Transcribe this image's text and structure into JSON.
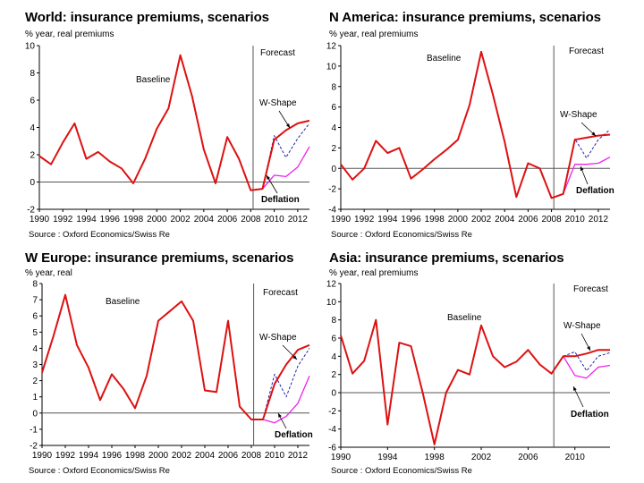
{
  "colors": {
    "baseline": "#dd1111",
    "wshape": "#2222aa",
    "deflation": "#ee22ee",
    "axis": "#555555"
  },
  "chart_data": [
    {
      "type": "line",
      "title": "World: insurance premiums, scenarios",
      "ylabel": "% year, real premiums",
      "source": "Source : Oxford Economics/Swiss Re",
      "xlim": [
        1990,
        2013
      ],
      "ylim": [
        -2,
        10
      ],
      "yticks": [
        -2,
        0,
        2,
        4,
        6,
        8,
        10
      ],
      "xticks": [
        1990,
        1992,
        1994,
        1996,
        1998,
        2000,
        2002,
        2004,
        2006,
        2008,
        2010,
        2012
      ],
      "xtick_labels": [
        "1990",
        "1992",
        "1994",
        "1996",
        "1998",
        "2000",
        "2002",
        "2004",
        "2006",
        "2008",
        "2010",
        "2012"
      ],
      "forecast_year": 2008.2,
      "labels": {
        "forecast": "Forecast",
        "baseline": "Baseline",
        "wshape": "W-Shape",
        "deflation": "Deflation"
      },
      "series": [
        {
          "name": "Baseline",
          "x": [
            1990,
            1991,
            1992,
            1993,
            1994,
            1995,
            1996,
            1997,
            1998,
            1999,
            2000,
            2001,
            2002,
            2003,
            2004,
            2005,
            2006,
            2007,
            2008,
            2009,
            2010,
            2011,
            2012,
            2013
          ],
          "values": [
            1.9,
            1.3,
            2.9,
            4.3,
            1.7,
            2.2,
            1.5,
            1.0,
            -0.1,
            1.7,
            3.9,
            5.4,
            9.3,
            6.3,
            2.4,
            -0.1,
            3.3,
            1.7,
            -0.6,
            -0.5,
            3.1,
            3.8,
            4.3,
            4.5
          ]
        },
        {
          "name": "W-Shape",
          "x": [
            2009,
            2010,
            2011,
            2012,
            2013
          ],
          "values": [
            -0.5,
            3.4,
            1.8,
            3.2,
            4.3
          ]
        },
        {
          "name": "Deflation",
          "x": [
            2009,
            2010,
            2011,
            2012,
            2013
          ],
          "values": [
            -0.5,
            0.5,
            0.4,
            1.1,
            2.6
          ]
        }
      ]
    },
    {
      "type": "line",
      "title": "N America: insurance premiums, scenarios",
      "ylabel": "% year, real premiums",
      "source": "Source : Oxford Economics/Swiss Re",
      "xlim": [
        1990,
        2013
      ],
      "ylim": [
        -4,
        12
      ],
      "yticks": [
        -4,
        -2,
        0,
        2,
        4,
        6,
        8,
        10,
        12
      ],
      "xticks": [
        1990,
        1992,
        1994,
        1996,
        1998,
        2000,
        2002,
        2004,
        2006,
        2008,
        2010,
        2012
      ],
      "xtick_labels": [
        "1990",
        "1992",
        "1994",
        "1996",
        "1998",
        "2000",
        "2002",
        "2004",
        "2006",
        "2008",
        "2010",
        "2012"
      ],
      "forecast_year": 2008.2,
      "labels": {
        "forecast": "Forecast",
        "baseline": "Baseline",
        "wshape": "W-Shape",
        "deflation": "Deflation"
      },
      "series": [
        {
          "name": "Baseline",
          "x": [
            1990,
            1991,
            1992,
            1993,
            1994,
            1995,
            1996,
            1997,
            1998,
            1999,
            2000,
            2001,
            2002,
            2003,
            2004,
            2005,
            2006,
            2007,
            2008,
            2009,
            2010,
            2011,
            2012,
            2013
          ],
          "values": [
            0.4,
            -1.1,
            0.0,
            2.7,
            1.5,
            2.0,
            -1.0,
            -0.1,
            0.9,
            1.8,
            2.8,
            6.2,
            11.4,
            7.2,
            2.6,
            -2.8,
            0.5,
            0.0,
            -2.9,
            -2.5,
            2.8,
            3.0,
            3.2,
            3.3
          ]
        },
        {
          "name": "W-Shape",
          "x": [
            2009,
            2010,
            2011,
            2012,
            2013
          ],
          "values": [
            -2.5,
            2.9,
            1.0,
            2.8,
            3.8
          ]
        },
        {
          "name": "Deflation",
          "x": [
            2009,
            2010,
            2011,
            2012,
            2013
          ],
          "values": [
            -2.5,
            0.4,
            0.4,
            0.5,
            1.1
          ]
        }
      ]
    },
    {
      "type": "line",
      "title": "W Europe: insurance premiums, scenarios",
      "ylabel": "% year, real",
      "source": "Source : Oxford Economics/Swiss Re",
      "xlim": [
        1990,
        2013
      ],
      "ylim": [
        -2,
        8
      ],
      "yticks": [
        -2,
        -1,
        0,
        1,
        2,
        3,
        4,
        5,
        6,
        7,
        8
      ],
      "xticks": [
        1990,
        1992,
        1994,
        1996,
        1998,
        2000,
        2002,
        2004,
        2006,
        2008,
        2010,
        2012
      ],
      "xtick_labels": [
        "1990",
        "1992",
        "1994",
        "1996",
        "1998",
        "2000",
        "2002",
        "2004",
        "2006",
        "2008",
        "2010",
        "2012"
      ],
      "forecast_year": 2008.2,
      "labels": {
        "forecast": "Forecast",
        "baseline": "Baseline",
        "wshape": "W-Shape",
        "deflation": "Deflation"
      },
      "series": [
        {
          "name": "Baseline",
          "x": [
            1990,
            1991,
            1992,
            1993,
            1994,
            1995,
            1996,
            1997,
            1998,
            1999,
            2000,
            2001,
            2002,
            2003,
            2004,
            2005,
            2006,
            2007,
            2008,
            2009,
            2010,
            2011,
            2012,
            2013
          ],
          "values": [
            2.5,
            4.8,
            7.3,
            4.2,
            2.8,
            0.8,
            2.4,
            1.5,
            0.3,
            2.3,
            5.7,
            6.3,
            6.9,
            5.7,
            1.4,
            1.3,
            5.7,
            0.4,
            -0.4,
            -0.4,
            1.8,
            3.0,
            3.9,
            4.2
          ]
        },
        {
          "name": "W-Shape",
          "x": [
            2009,
            2010,
            2011,
            2012,
            2013
          ],
          "values": [
            -0.4,
            2.4,
            1.0,
            2.9,
            4.0
          ]
        },
        {
          "name": "Deflation",
          "x": [
            2009,
            2010,
            2011,
            2012,
            2013
          ],
          "values": [
            -0.4,
            -0.6,
            -0.2,
            0.6,
            2.3
          ]
        }
      ]
    },
    {
      "type": "line",
      "title": "Asia: insurance premiums, scenarios",
      "ylabel": "% year, real premiums",
      "source": "Source : Oxford Economics/Swiss Re",
      "xlim": [
        1990,
        2013
      ],
      "ylim": [
        -6,
        12
      ],
      "yticks": [
        -6,
        -4,
        -2,
        0,
        2,
        4,
        6,
        8,
        10,
        12
      ],
      "xticks": [
        1990,
        1994,
        1998,
        2002,
        2006,
        2010
      ],
      "xtick_labels": [
        "1990",
        "1994",
        "1998",
        "2002",
        "2006",
        "2010"
      ],
      "forecast_year": 2008.2,
      "labels": {
        "forecast": "Forecast",
        "baseline": "Baseline",
        "wshape": "W-Shape",
        "deflation": "Deflation"
      },
      "series": [
        {
          "name": "Baseline",
          "x": [
            1990,
            1991,
            1992,
            1993,
            1994,
            1995,
            1996,
            1997,
            1998,
            1999,
            2000,
            2001,
            2002,
            2003,
            2004,
            2005,
            2006,
            2007,
            2008,
            2009,
            2010,
            2011,
            2012,
            2013
          ],
          "values": [
            6.3,
            2.1,
            3.5,
            8.0,
            -3.5,
            5.5,
            5.1,
            0.0,
            -5.7,
            0.0,
            2.5,
            2.0,
            7.4,
            4.0,
            2.8,
            3.4,
            4.7,
            3.1,
            2.1,
            4.0,
            4.0,
            4.3,
            4.7,
            4.7
          ]
        },
        {
          "name": "W-Shape",
          "x": [
            2009,
            2010,
            2011,
            2012,
            2013
          ],
          "values": [
            4.0,
            4.5,
            2.4,
            4.0,
            4.4
          ]
        },
        {
          "name": "Deflation",
          "x": [
            2009,
            2010,
            2011,
            2012,
            2013
          ],
          "values": [
            4.0,
            1.9,
            1.6,
            2.8,
            3.0
          ]
        }
      ]
    }
  ]
}
